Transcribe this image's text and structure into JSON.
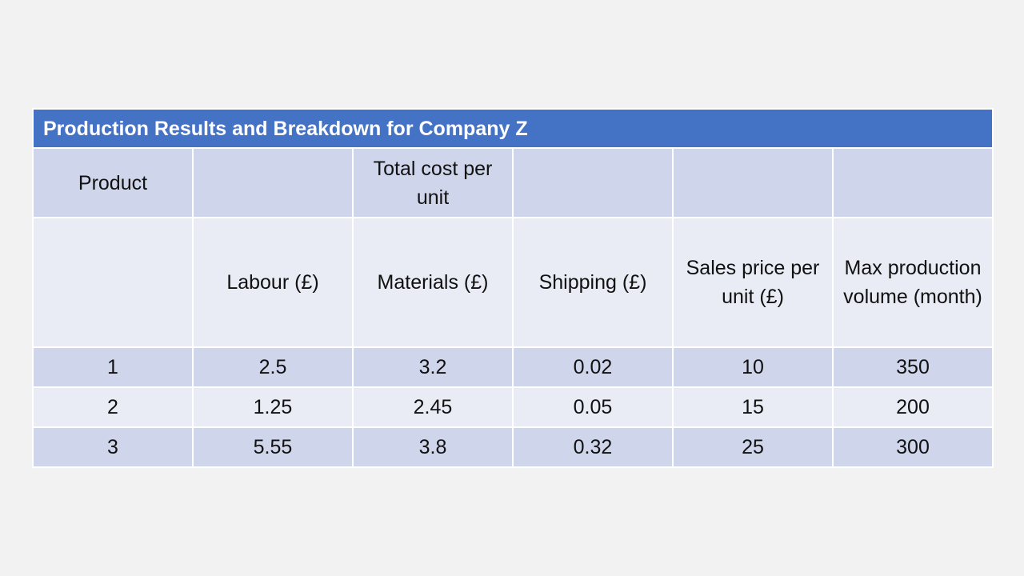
{
  "table": {
    "title": "Production Results and Breakdown for Company Z",
    "header_row_1": [
      "Product",
      "",
      "Total cost per unit",
      "",
      "",
      ""
    ],
    "header_row_2": [
      "",
      "Labour (£)",
      "Materials (£)",
      "Shipping (£)",
      "Sales price per unit (£)",
      "Max production volume (month)"
    ],
    "rows": [
      [
        "1",
        "2.5",
        "3.2",
        "0.02",
        "10",
        "350"
      ],
      [
        "2",
        "1.25",
        "2.45",
        "0.05",
        "15",
        "200"
      ],
      [
        "3",
        "5.55",
        "3.8",
        "0.32",
        "25",
        "300"
      ]
    ],
    "colors": {
      "title_bg": "#4472c4",
      "row_dark": "#cfd5ea",
      "row_light": "#e9ebf5",
      "slide_bg": "#f2f2f2"
    }
  }
}
